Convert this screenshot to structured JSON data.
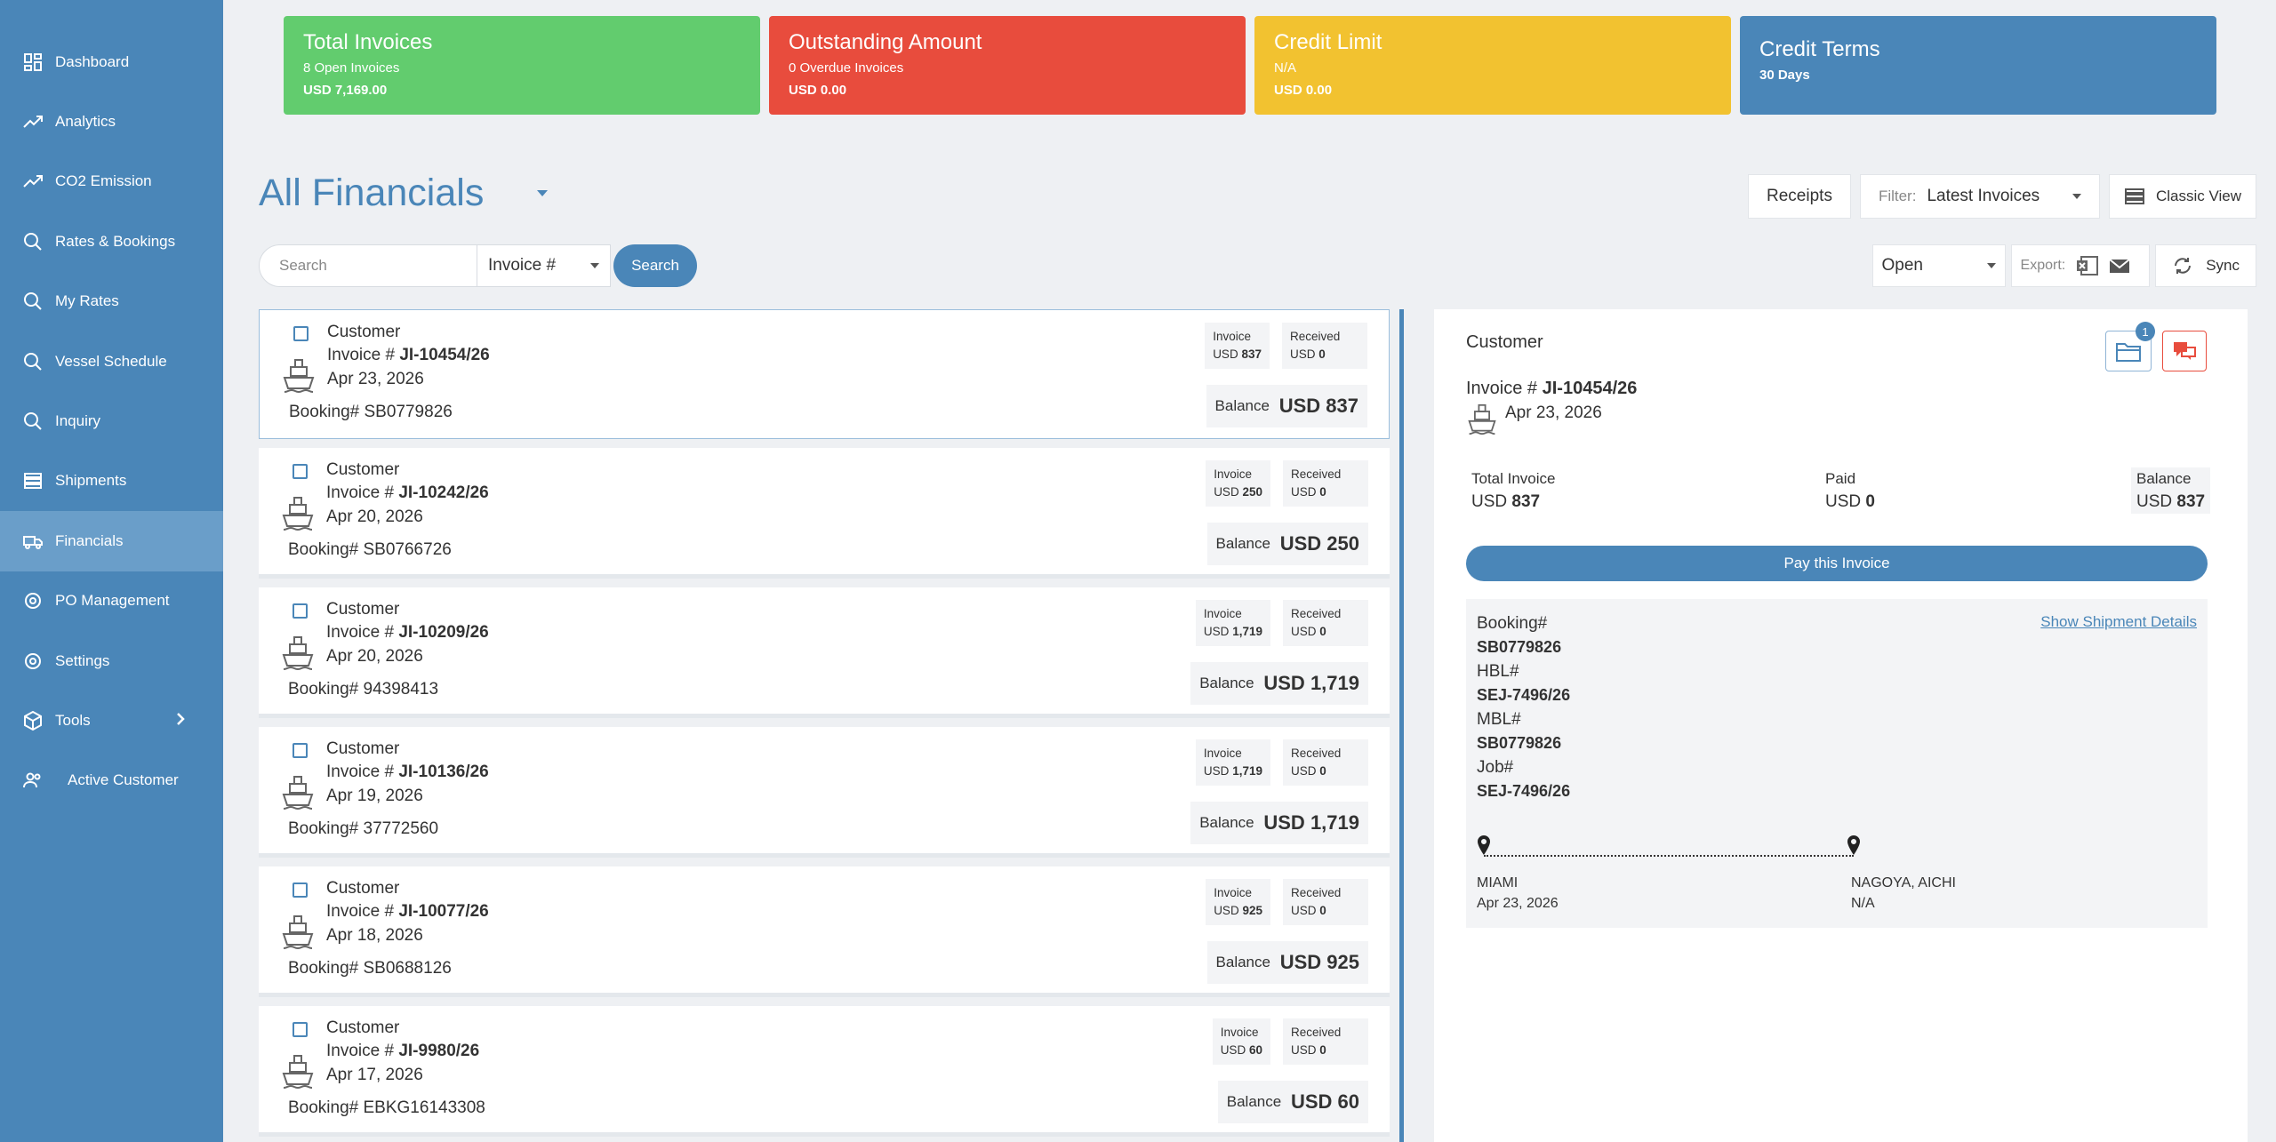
{
  "sidebar": {
    "items": [
      {
        "label": "Dashboard",
        "icon": "dashboard-icon"
      },
      {
        "label": "Analytics",
        "icon": "trend-icon"
      },
      {
        "label": "CO2 Emission",
        "icon": "trend-icon"
      },
      {
        "label": "Rates & Bookings",
        "icon": "search-icon"
      },
      {
        "label": "My Rates",
        "icon": "search-icon"
      },
      {
        "label": "Vessel Schedule",
        "icon": "search-icon"
      },
      {
        "label": "Inquiry",
        "icon": "search-icon"
      },
      {
        "label": "Shipments",
        "icon": "shipments-icon"
      },
      {
        "label": "Financials",
        "icon": "truck-icon"
      },
      {
        "label": "PO Management",
        "icon": "gear-icon"
      },
      {
        "label": "Settings",
        "icon": "gear-icon"
      },
      {
        "label": "Tools",
        "icon": "box-icon"
      },
      {
        "label": "Active Customer",
        "icon": "users-icon"
      }
    ]
  },
  "cards": [
    {
      "title": "Total Invoices",
      "sub": "8 Open Invoices",
      "value": "USD 7,169.00",
      "color": "#62cc6e"
    },
    {
      "title": "Outstanding Amount",
      "sub": "0 Overdue Invoices",
      "value": "USD 0.00",
      "color": "#e84c3d"
    },
    {
      "title": "Credit Limit",
      "sub": "N/A",
      "value": "USD 0.00",
      "color": "#f2c230"
    },
    {
      "title": "Credit Terms",
      "sub": "",
      "value": "30 Days",
      "color": "#4a86b8"
    }
  ],
  "page": {
    "title": "All Financials",
    "receipts_label": "Receipts",
    "filter_label": "Filter:",
    "filter_value": "Latest Invoices",
    "classic_view_label": "Classic View"
  },
  "search": {
    "placeholder": "Search",
    "field": "Invoice #",
    "button": "Search"
  },
  "tools": {
    "status": "Open",
    "export_label": "Export:",
    "sync_label": "Sync"
  },
  "invoices": [
    {
      "customer": "Customer",
      "invoice_prefix": "Invoice #",
      "invoice_no": "JI-10454/26",
      "date": "Apr 23, 2026",
      "booking": "Booking# SB0779826",
      "invoice_amt": "837",
      "received": "0",
      "balance": "837"
    },
    {
      "customer": "Customer",
      "invoice_prefix": "Invoice #",
      "invoice_no": "JI-10242/26",
      "date": "Apr 20, 2026",
      "booking": "Booking# SB0766726",
      "invoice_amt": "250",
      "received": "0",
      "balance": "250"
    },
    {
      "customer": "Customer",
      "invoice_prefix": "Invoice #",
      "invoice_no": "JI-10209/26",
      "date": "Apr 20, 2026",
      "booking": "Booking# 94398413",
      "invoice_amt": "1,719",
      "received": "0",
      "balance": "1,719"
    },
    {
      "customer": "Customer",
      "invoice_prefix": "Invoice #",
      "invoice_no": "JI-10136/26",
      "date": "Apr 19, 2026",
      "booking": "Booking# 37772560",
      "invoice_amt": "1,719",
      "received": "0",
      "balance": "1,719"
    },
    {
      "customer": "Customer",
      "invoice_prefix": "Invoice #",
      "invoice_no": "JI-10077/26",
      "date": "Apr 18, 2026",
      "booking": "Booking# SB0688126",
      "invoice_amt": "925",
      "received": "0",
      "balance": "925"
    },
    {
      "customer": "Customer",
      "invoice_prefix": "Invoice #",
      "invoice_no": "JI-9980/26",
      "date": "Apr 17, 2026",
      "booking": "Booking# EBKG16143308",
      "invoice_amt": "60",
      "received": "0",
      "balance": "60"
    }
  ],
  "labels": {
    "invoice": "Invoice",
    "received": "Received",
    "balance": "Balance",
    "usd": "USD"
  },
  "detail": {
    "customer": "Customer",
    "invoice_prefix": "Invoice #",
    "invoice_no": "JI-10454/26",
    "date": "Apr 23, 2026",
    "docs_count": "1",
    "total_invoice_label": "Total Invoice",
    "total_invoice": "837",
    "paid_label": "Paid",
    "paid": "0",
    "balance_label": "Balance",
    "balance": "837",
    "pay_button": "Pay this Invoice",
    "show_details": "Show Shipment Details",
    "booking_label": "Booking#",
    "booking": "SB0779826",
    "hbl_label": "HBL#",
    "hbl": "SEJ-7496/26",
    "mbl_label": "MBL#",
    "mbl": "SB0779826",
    "job_label": "Job#",
    "job": "SEJ-7496/26",
    "origin": "MIAMI",
    "origin_date": "Apr 23, 2026",
    "destination": "NAGOYA, AICHI",
    "destination_date": "N/A"
  }
}
